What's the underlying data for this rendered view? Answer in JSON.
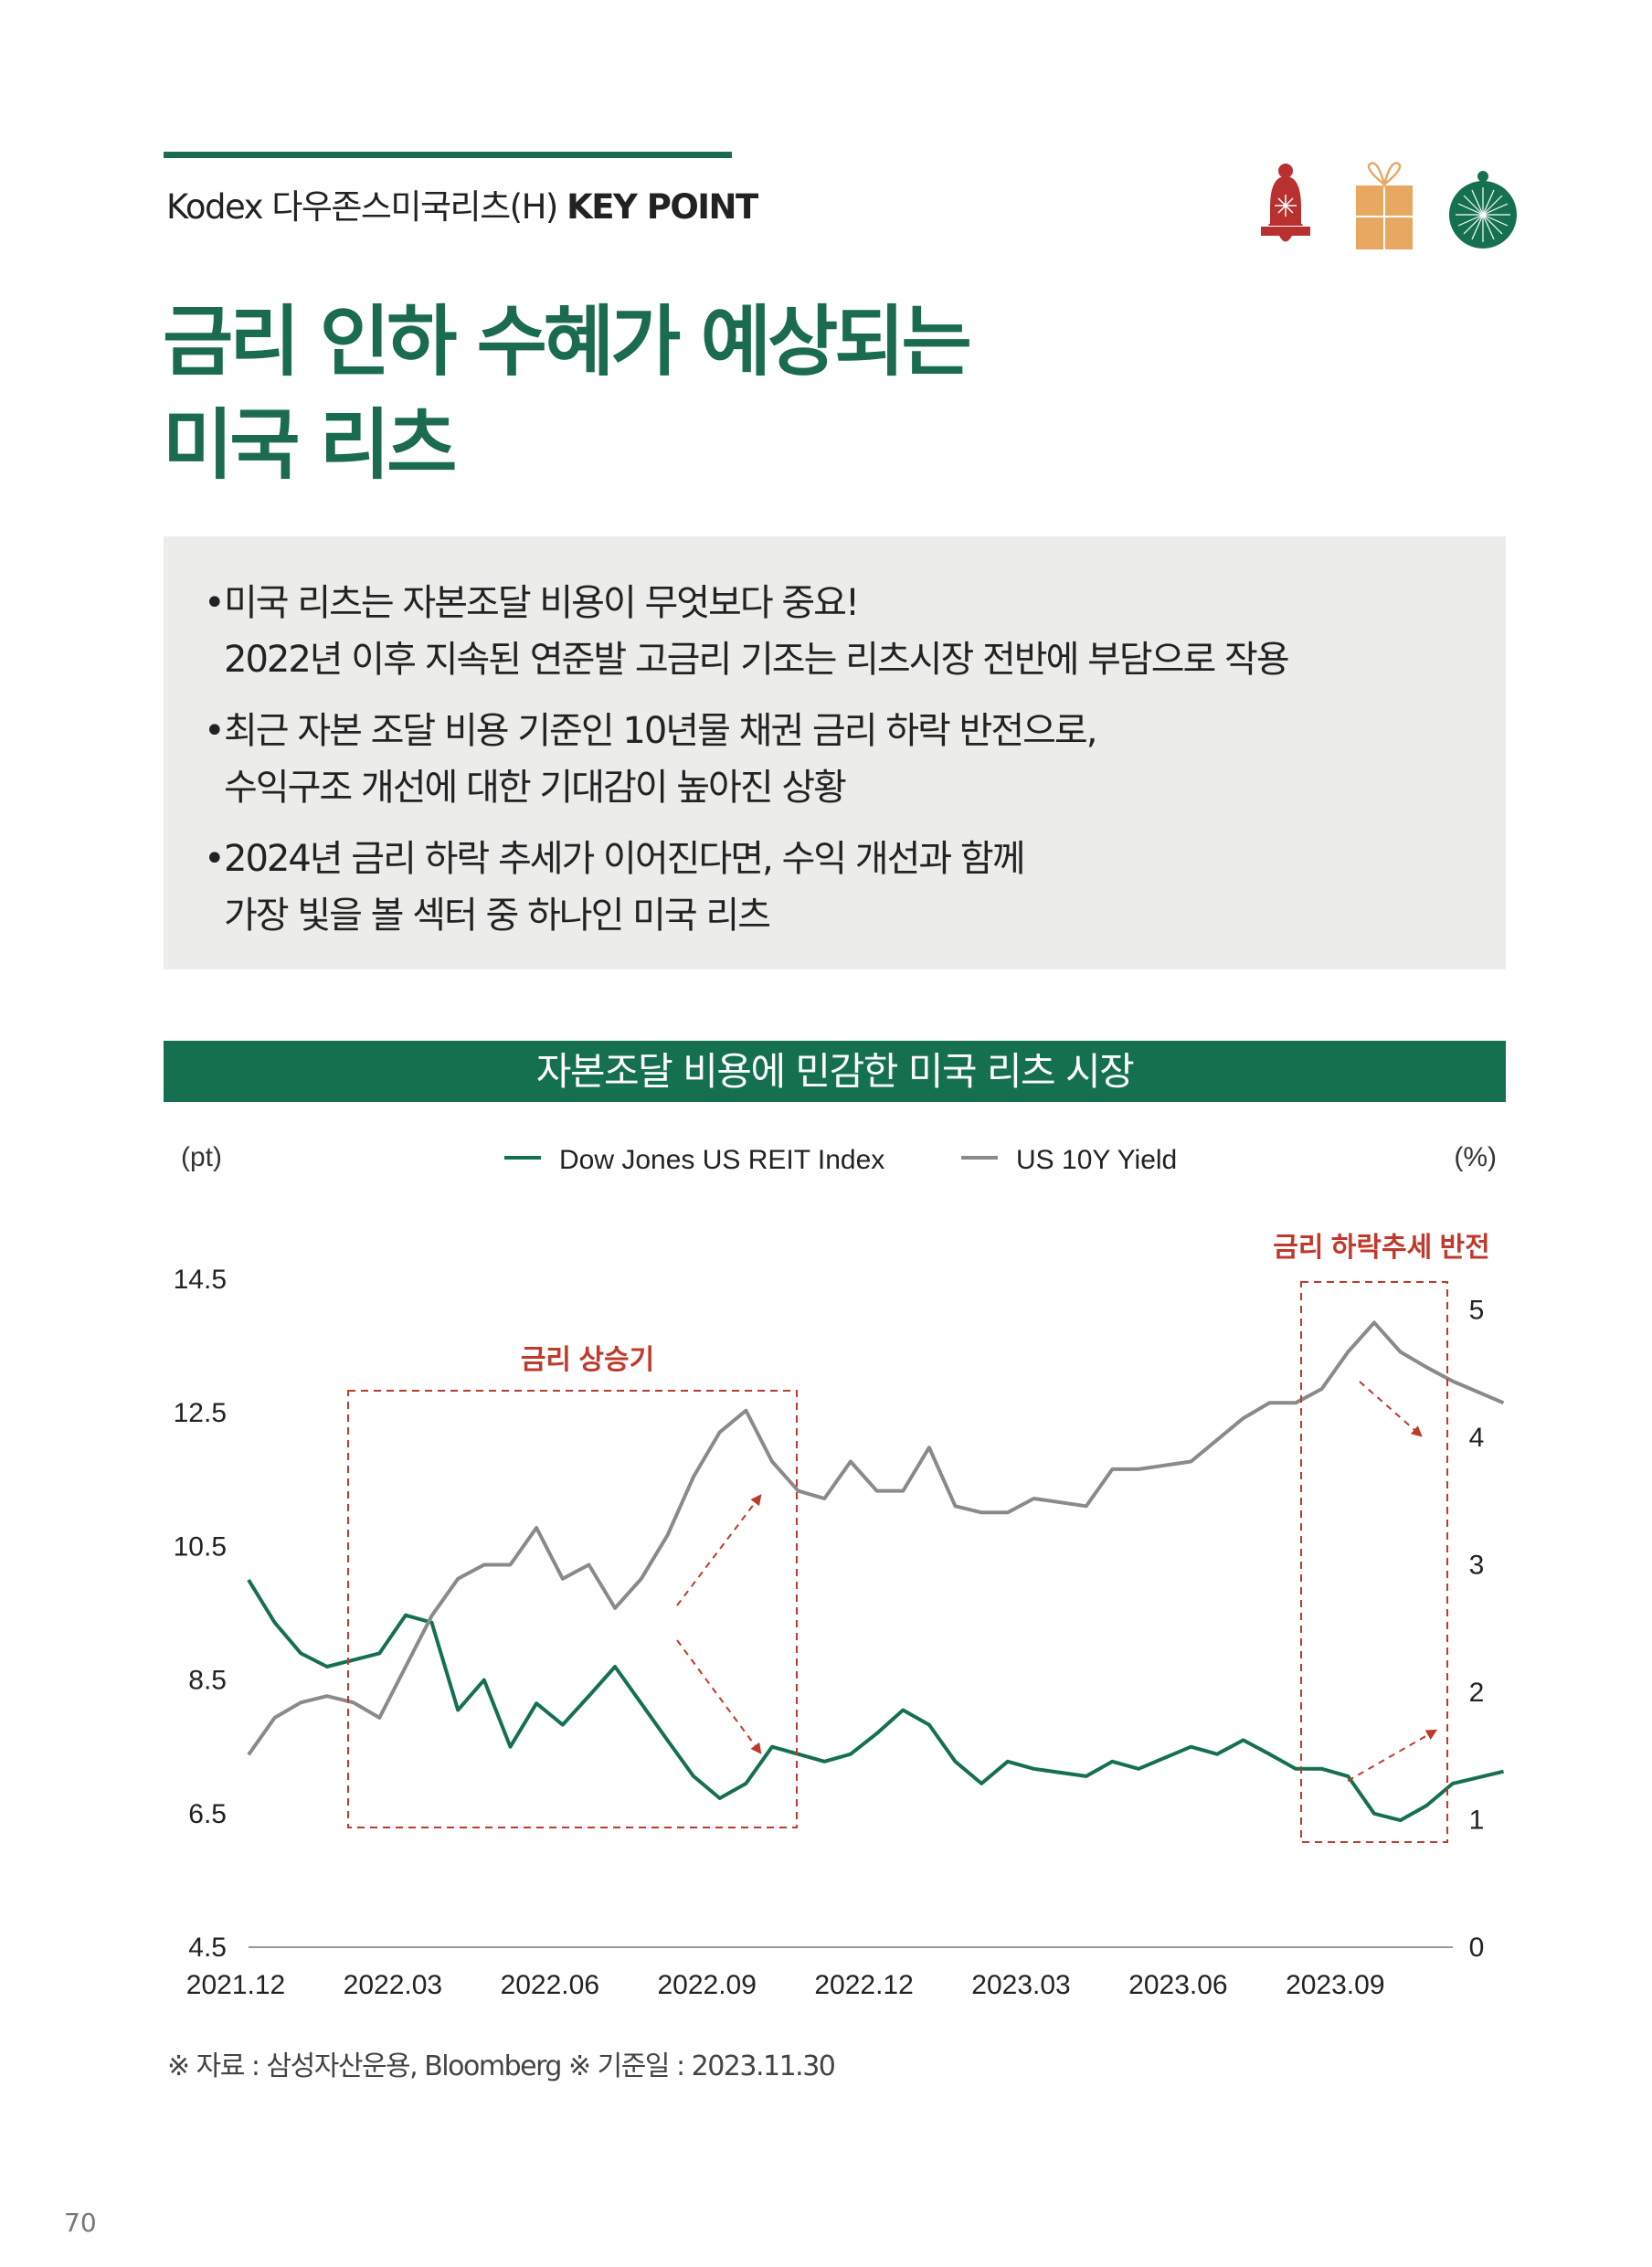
{
  "header": {
    "subtitle_prefix": "Kodex 다우존스미국리츠(H)",
    "subtitle_key": "KEY POINT",
    "icons": [
      "bell-icon",
      "gift-icon",
      "ornament-icon"
    ]
  },
  "title": {
    "line1": "금리 인하 수혜가 예상되는",
    "line2": "미국 리츠"
  },
  "bullets": [
    {
      "line1": "미국 리츠는 자본조달 비용이 무엇보다 중요!",
      "line2": "2022년 이후 지속된 연준발 고금리 기조는 리츠시장 전반에 부담으로 작용"
    },
    {
      "line1": "최근 자본 조달 비용 기준인 10년물 채권 금리 하락 반전으로,",
      "line2": "수익구조 개선에 대한 기대감이 높아진 상황"
    },
    {
      "line1": "2024년 금리 하락 추세가 이어진다면, 수익 개선과 함께",
      "line2": "가장 빛을 볼 섹터 중 하나인 미국 리츠"
    }
  ],
  "bullet_char": "•",
  "chart_data": {
    "type": "line",
    "title": "자본조달 비용에 민감한 미국 리츠 시장",
    "ylabel": "(pt)",
    "y2label": "(%)",
    "ylim": [
      4.5,
      14.5
    ],
    "y2lim": [
      0,
      5.24
    ],
    "yticks": [
      "4.5",
      "6.5",
      "8.5",
      "10.5",
      "12.5",
      "14.5"
    ],
    "y2ticks": [
      "0",
      "1",
      "2",
      "3",
      "4",
      "5"
    ],
    "xticks": [
      "2021.12",
      "2022.03",
      "2022.06",
      "2022.09",
      "2022.12",
      "2023.03",
      "2023.06",
      "2023.09"
    ],
    "x_months_since_2021_12": [
      0,
      0.5,
      1,
      1.5,
      2,
      2.5,
      3,
      3.5,
      4,
      4.5,
      5,
      5.5,
      6,
      6.5,
      7,
      7.5,
      8,
      8.5,
      9,
      9.5,
      10,
      10.5,
      11,
      11.5,
      12,
      12.5,
      13,
      13.5,
      14,
      14.5,
      15,
      16,
      16.5,
      17,
      18,
      18.5,
      19,
      19.5,
      20,
      20.5,
      21,
      21.5,
      22,
      22.5,
      23,
      23.97
    ],
    "series": [
      {
        "name": "Dow Jones US REIT Index",
        "axis": "left",
        "color": "#15704f",
        "values": [
          10.0,
          9.36,
          8.9,
          8.7,
          8.8,
          8.9,
          9.47,
          9.36,
          8.05,
          8.5,
          7.5,
          8.15,
          7.83,
          8.26,
          8.7,
          8.15,
          7.6,
          7.06,
          6.73,
          6.95,
          7.5,
          7.39,
          7.28,
          7.39,
          7.7,
          8.05,
          7.83,
          7.28,
          6.95,
          7.28,
          7.17,
          7.06,
          7.28,
          7.17,
          7.5,
          7.39,
          7.6,
          7.39,
          7.17,
          7.17,
          7.06,
          6.5,
          6.4,
          6.62,
          6.95,
          7.13
        ]
      },
      {
        "name": "US 10Y Yield",
        "axis": "right",
        "color": "#8a8a8a",
        "values": [
          1.51,
          1.8,
          1.92,
          1.97,
          1.92,
          1.8,
          2.2,
          2.6,
          2.89,
          3.0,
          3.0,
          3.29,
          2.89,
          3.0,
          2.66,
          2.89,
          3.23,
          3.69,
          4.04,
          4.21,
          3.81,
          3.58,
          3.52,
          3.81,
          3.58,
          3.58,
          3.92,
          3.46,
          3.41,
          3.41,
          3.52,
          3.46,
          3.75,
          3.75,
          3.81,
          3.98,
          4.15,
          4.27,
          4.27,
          4.38,
          4.67,
          4.9,
          4.67,
          4.55,
          4.44,
          4.27
        ]
      }
    ],
    "annotations": [
      "금리 상승기",
      "금리 하락추세 반전"
    ],
    "legend": "top-center",
    "grid": false
  },
  "source": "※ 자료 : 삼성자산운용, Bloomberg   ※ 기준일 : 2023.11.30",
  "page_number": "70",
  "colors": {
    "brand_green": "#1a6b50",
    "annotation_red": "#c0392b",
    "box_gray": "#ecedeb"
  }
}
